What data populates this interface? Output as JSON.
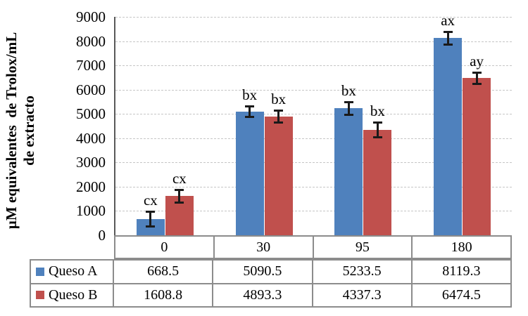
{
  "chart_data": {
    "type": "bar",
    "title": "",
    "xlabel": "",
    "ylabel_lines": [
      "µM equivalentes  de Trolox/mL",
      "de extracto"
    ],
    "categories": [
      "0",
      "30",
      "95",
      "180"
    ],
    "series": [
      {
        "name": "Queso A",
        "color": "#4F81BD",
        "values": [
          668.5,
          5090.5,
          5233.5,
          8119.3
        ],
        "errors": [
          345,
          270,
          300,
          300
        ],
        "sig_labels": [
          "cx",
          "bx",
          "bx",
          "ax"
        ],
        "table_values": [
          "668.5",
          "5090.5",
          "5233.5",
          "8119.3"
        ]
      },
      {
        "name": "Queso B",
        "color": "#C0504D",
        "values": [
          1608.8,
          4893.3,
          4337.3,
          6474.5
        ],
        "errors": [
          310,
          300,
          340,
          280
        ],
        "sig_labels": [
          "cx",
          "bx",
          "bx",
          "ay"
        ],
        "table_values": [
          "1608.8",
          "4893.3",
          "4337.3",
          "6474.5"
        ]
      }
    ],
    "y_ticks": [
      0,
      1000,
      2000,
      3000,
      4000,
      5000,
      6000,
      7000,
      8000,
      9000
    ],
    "ylim": [
      0,
      9000
    ],
    "grid": true,
    "legend_position": "data-table-left",
    "colors": {
      "axis": "#595959",
      "gridline": "#c6c6c6",
      "table_border": "#8c8c8c",
      "error_bar": "#1a1a1a",
      "text": "#000000",
      "background": "#ffffff"
    }
  }
}
